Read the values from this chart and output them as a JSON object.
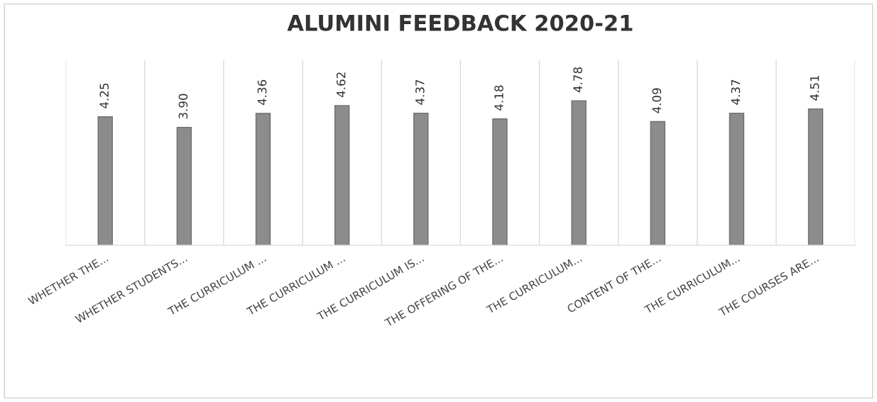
{
  "chart_data": {
    "type": "bar",
    "title": "ALUMINI FEEDBACK 2020-21",
    "categories": [
      "WHETHER THE...",
      "WHETHER STUDENTS...",
      "THE CURRICULUM ...",
      "THE CURRICULUM ...",
      "THE CURRICULUM IS...",
      "THE OFFERING OF THE...",
      "THE CURRICULUM...",
      "CONTENT OF THE...",
      "THE CURRICULUM...",
      "THE COURSES ARE..."
    ],
    "values": [
      4.25,
      3.9,
      4.36,
      4.62,
      4.37,
      4.18,
      4.78,
      4.09,
      4.37,
      4.51
    ],
    "value_labels": [
      "4.25",
      "3.90",
      "4.36",
      "4.62",
      "4.37",
      "4.18",
      "4.78",
      "4.09",
      "4.37",
      "4.51"
    ],
    "color": "#8c8c8c",
    "grid": "x"
  }
}
